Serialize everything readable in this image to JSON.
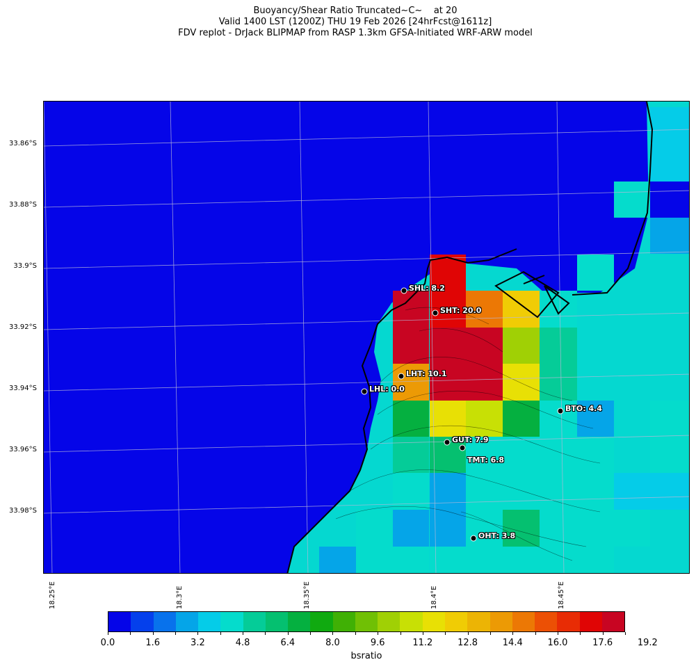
{
  "title": {
    "line1": "Buoyancy/Shear Ratio Truncated~C~    at 20",
    "line2": "Valid 1400 LST (1200Z) THU 19 Feb 2026 [24hrFcst@1611z]",
    "line3": "FDV replot - DrJack BLIPMAP from RASP 1.3km GFSA-Initiated WRF-ARW model"
  },
  "lat_labels": [
    "33.86°S",
    "33.88°S",
    "33.9°S",
    "33.92°S",
    "33.94°S",
    "33.96°S",
    "33.98°S"
  ],
  "lon_labels": [
    "18.25°E",
    "18.3°E",
    "18.35°E",
    "18.4°E",
    "18.45°E"
  ],
  "stations": [
    {
      "name": "SHL",
      "value": "8.2",
      "label": "SHL: 8.2"
    },
    {
      "name": "SHT",
      "value": "20.0",
      "label": "SHT: 20.0"
    },
    {
      "name": "LHT",
      "value": "10.1",
      "label": "LHT: 10.1"
    },
    {
      "name": "LHL",
      "value": "0.0",
      "label": "LHL: 0.0"
    },
    {
      "name": "BTO",
      "value": "4.4",
      "label": "BTO: 4.4"
    },
    {
      "name": "GUT",
      "value": "7.9",
      "label": "GUT: 7.9"
    },
    {
      "name": "TMT",
      "value": "6.8",
      "label": "TMT: 6.8"
    },
    {
      "name": "OHT",
      "value": "3.8",
      "label": "OHT: 3.8"
    }
  ],
  "colorbar": {
    "title": "bsratio",
    "tick_labels": [
      "0.0",
      "1.6",
      "3.2",
      "4.8",
      "6.4",
      "8.0",
      "9.6",
      "11.2",
      "12.8",
      "14.4",
      "16.0",
      "17.6",
      "19.2"
    ],
    "colors": [
      "#0505e8",
      "#0540ec",
      "#0872ec",
      "#05a5e8",
      "#05cce8",
      "#05dccc",
      "#05cc98",
      "#05c070",
      "#05b040",
      "#10aa10",
      "#40b005",
      "#70c005",
      "#a0d005",
      "#c8e005",
      "#e8e005",
      "#f0cc05",
      "#ecb405",
      "#ec9a05",
      "#ec7805",
      "#ec5005",
      "#e82c05",
      "#e00505",
      "#c80522"
    ]
  },
  "map_colors": {
    "background": "#0505e8",
    "cyan": "#05d8d0",
    "teal": "#05cc98"
  }
}
